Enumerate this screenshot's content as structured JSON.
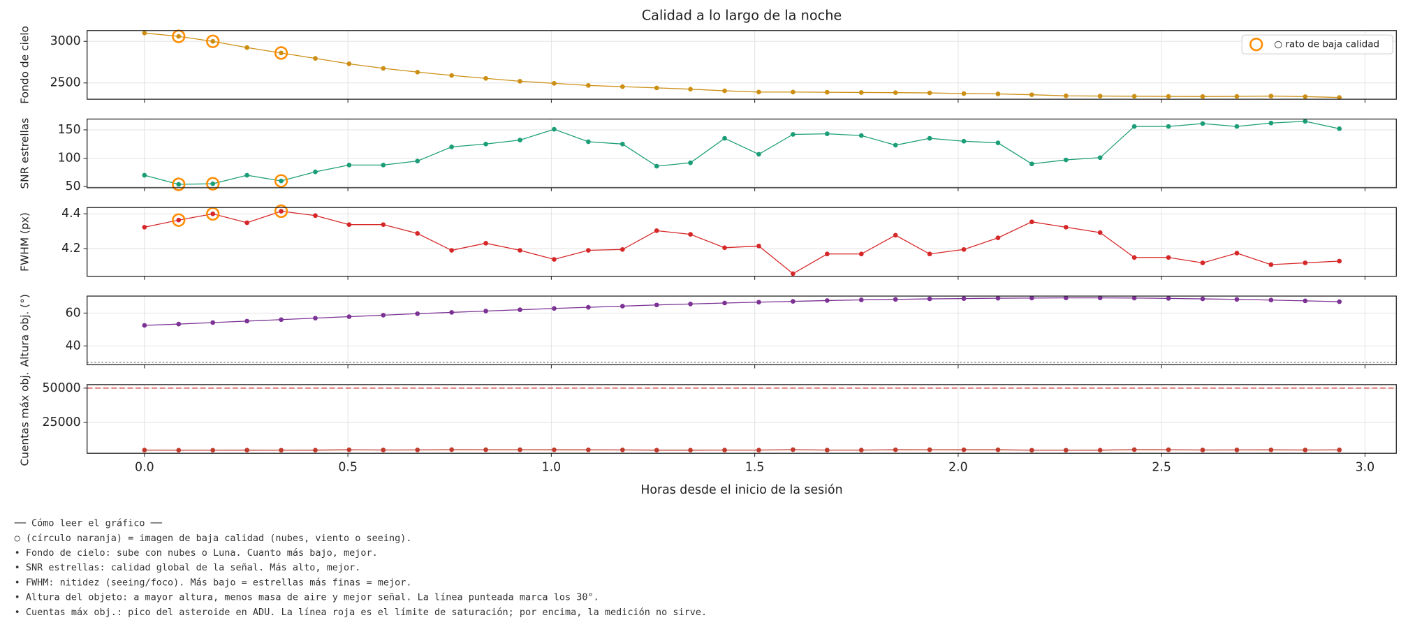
{
  "chart_data": {
    "type": "line",
    "title": "Calidad a lo largo de la noche",
    "xlabel": "Horas desde el inicio de la sesión",
    "x": [
      0,
      0.084,
      0.168,
      0.252,
      0.336,
      0.42,
      0.503,
      0.587,
      0.671,
      0.755,
      0.839,
      0.923,
      1.007,
      1.091,
      1.175,
      1.259,
      1.342,
      1.426,
      1.51,
      1.594,
      1.678,
      1.762,
      1.846,
      1.93,
      2.014,
      2.098,
      2.181,
      2.265,
      2.349,
      2.433,
      2.517,
      2.601,
      2.685,
      2.769,
      2.853,
      2.937
    ],
    "xlim": [
      -0.141,
      3.077
    ],
    "xticks": [
      {
        "value": 0,
        "label": "0.0"
      },
      {
        "value": 0.5,
        "label": "0.5"
      },
      {
        "value": 1,
        "label": "1.0"
      },
      {
        "value": 1.5,
        "label": "1.5"
      },
      {
        "value": 2,
        "label": "2.0"
      },
      {
        "value": 2.5,
        "label": "2.5"
      },
      {
        "value": 3,
        "label": "3.0"
      }
    ],
    "grid": true,
    "flagged": {
      "name": "○ rato de baja calidad",
      "color": "#ff8c00",
      "indices": [
        1,
        2,
        4
      ],
      "legend": "upper right"
    },
    "panels": [
      {
        "ylabel": "Fondo de cielo",
        "ylim": [
          2304,
          3130
        ],
        "yticks": [
          2500,
          3000
        ],
        "show_flagged": true,
        "legend": true,
        "series": [
          {
            "color": "#cc8f14",
            "values": [
              3100,
              3060,
              3000,
              2925,
              2860,
              2795,
              2730,
              2675,
              2630,
              2590,
              2555,
              2520,
              2495,
              2470,
              2455,
              2440,
              2425,
              2405,
              2390,
              2390,
              2388,
              2385,
              2383,
              2380,
              2372,
              2368,
              2358,
              2345,
              2342,
              2340,
              2338,
              2337,
              2338,
              2342,
              2335,
              2325
            ]
          }
        ]
      },
      {
        "ylabel": "SNR estrellas",
        "ylim": [
          48,
          169
        ],
        "yticks": [
          50,
          100,
          150
        ],
        "show_flagged": true,
        "legend": false,
        "series": [
          {
            "color": "#1b9e77",
            "values": [
              70,
              54,
              55,
              70,
              60,
              76,
              88,
              88,
              95,
              120,
              125,
              132,
              151,
              129,
              125,
              86,
              92,
              135,
              107,
              142,
              143,
              140,
              123,
              135,
              130,
              127,
              90,
              97,
              101,
              156,
              156,
              161,
              156,
              162,
              165,
              152
            ]
          }
        ]
      },
      {
        "ylabel": "FWHM (px)",
        "ylim": [
          4.041,
          4.436
        ],
        "yticks": [
          4.2,
          4.4
        ],
        "show_flagged": true,
        "legend": false,
        "series": [
          {
            "color": "#d62728",
            "values": [
              4.323,
              4.364,
              4.4,
              4.349,
              4.415,
              4.39,
              4.338,
              4.338,
              4.287,
              4.19,
              4.231,
              4.19,
              4.138,
              4.19,
              4.195,
              4.303,
              4.282,
              4.205,
              4.215,
              4.056,
              4.169,
              4.169,
              4.277,
              4.169,
              4.195,
              4.262,
              4.354,
              4.323,
              4.292,
              4.149,
              4.149,
              4.118,
              4.174,
              4.108,
              4.118,
              4.128
            ]
          }
        ]
      },
      {
        "ylabel": "Altura obj. (°)",
        "ylim": [
          28.6,
          70.3
        ],
        "yticks": [
          40,
          60
        ],
        "show_flagged": false,
        "legend": false,
        "reference": {
          "value": 30,
          "color": "#999999",
          "style": "dotted"
        },
        "series": [
          {
            "color": "#7b3294",
            "values": [
              52.5,
              53.3,
              54.2,
              55.1,
              56,
              56.9,
              57.8,
              58.7,
              59.6,
              60.4,
              61.2,
              62,
              62.8,
              63.5,
              64.2,
              64.9,
              65.5,
              66.1,
              66.6,
              67.1,
              67.6,
              68,
              68.3,
              68.6,
              68.8,
              69,
              69.1,
              69.2,
              69.2,
              69.1,
              68.9,
              68.6,
              68.3,
              67.9,
              67.4,
              66.9
            ]
          }
        ]
      },
      {
        "ylabel": "Cuentas máx obj.",
        "ylim": [
          2564,
          52564
        ],
        "yticks": [
          25000,
          50000
        ],
        "show_flagged": false,
        "legend": false,
        "reference": {
          "value": 50000,
          "color": "#d9534f",
          "style": "dashed"
        },
        "series": [
          {
            "color": "#c0392b",
            "values": [
              4900,
              4800,
              4800,
              4850,
              4800,
              4850,
              5100,
              4950,
              5000,
              5200,
              5150,
              5150,
              5100,
              5050,
              5000,
              4850,
              4850,
              4900,
              4900,
              5200,
              4900,
              4900,
              5100,
              5150,
              5100,
              5100,
              4800,
              4800,
              4850,
              5200,
              5150,
              4950,
              5000,
              5050,
              4950,
              5000
            ]
          }
        ]
      }
    ]
  },
  "notes": {
    "heading": "── Cómo leer el gráfico ──",
    "lines": [
      "○ (círculo naranja) = imagen de baja calidad (nubes, viento o seeing).",
      "• Fondo de cielo: sube con nubes o Luna. Cuanto más bajo, mejor.",
      "• SNR estrellas: calidad global de la señal. Más alto, mejor.",
      "• FWHM: nitidez (seeing/foco). Más bajo = estrellas más finas = mejor.",
      "• Altura del objeto: a mayor altura, menos masa de aire y mejor señal. La línea punteada marca los 30°.",
      "• Cuentas máx obj.: pico del asteroide en ADU. La línea roja es el límite de saturación; por encima, la medición no sirve."
    ]
  }
}
